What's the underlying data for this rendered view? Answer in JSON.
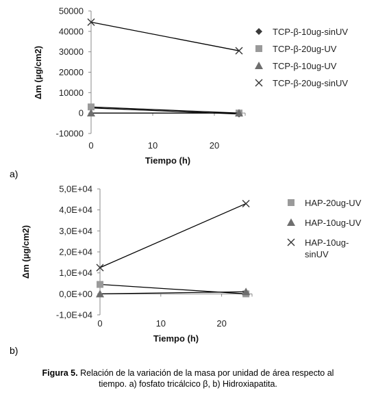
{
  "chart_data": [
    {
      "type": "scatter",
      "panel_label": "a)",
      "xlabel": "Tiempo (h)",
      "ylabel": "Δm (µg/cm2)",
      "xlim": [
        0,
        25
      ],
      "ylim": [
        -10000,
        50000
      ],
      "x_ticks": [
        "0",
        "10",
        "20"
      ],
      "y_ticks": [
        "-10000",
        "0",
        "10000",
        "20000",
        "30000",
        "40000",
        "50000"
      ],
      "legend_position": "right",
      "series": [
        {
          "name": "TCP-β-10ug-sinUV",
          "marker": "diamond",
          "color": "#3a3a3a",
          "x": [
            0,
            24
          ],
          "y": [
            2500,
            -500
          ]
        },
        {
          "name": "TCP-β-20ug-UV",
          "marker": "square",
          "color": "#9a9a9a",
          "x": [
            0,
            24
          ],
          "y": [
            3000,
            0
          ]
        },
        {
          "name": "TCP-β-10ug-UV",
          "marker": "triangle",
          "color": "#6e6e6e",
          "x": [
            0,
            24
          ],
          "y": [
            0,
            0
          ]
        },
        {
          "name": "TCP-β-20ug-sinUV",
          "marker": "x",
          "color": "#333333",
          "x": [
            0,
            24
          ],
          "y": [
            44500,
            30500
          ]
        }
      ]
    },
    {
      "type": "scatter",
      "panel_label": "b)",
      "xlabel": "Tiempo (h)",
      "ylabel": "Δm (µg/cm2)",
      "xlim": [
        0,
        25
      ],
      "ylim": [
        -10000,
        50000
      ],
      "x_ticks": [
        "0",
        "10",
        "20"
      ],
      "y_ticks": [
        "-1,0E+04",
        "0,0E+00",
        "1,0E+04",
        "2,0E+04",
        "3,0E+04",
        "4,0E+04",
        "5,0E+04"
      ],
      "legend_position": "right",
      "series": [
        {
          "name": "HAP-20ug-UV",
          "marker": "square",
          "color": "#9a9a9a",
          "x": [
            0,
            24
          ],
          "y": [
            4500,
            0
          ]
        },
        {
          "name": "HAP-10ug-UV",
          "marker": "triangle",
          "color": "#6e6e6e",
          "x": [
            0,
            24
          ],
          "y": [
            0,
            1000
          ]
        },
        {
          "name": "HAP-10ug-sinUV",
          "marker": "x",
          "color": "#333333",
          "x": [
            0,
            24
          ],
          "y": [
            12500,
            43000
          ]
        }
      ]
    }
  ],
  "caption": {
    "label": "Figura 5.",
    "line1": "Relación de la variación de la masa por unidad de área respecto al",
    "line2": "tiempo. a) fosfato tricálcico β, b) Hidroxiapatita."
  }
}
